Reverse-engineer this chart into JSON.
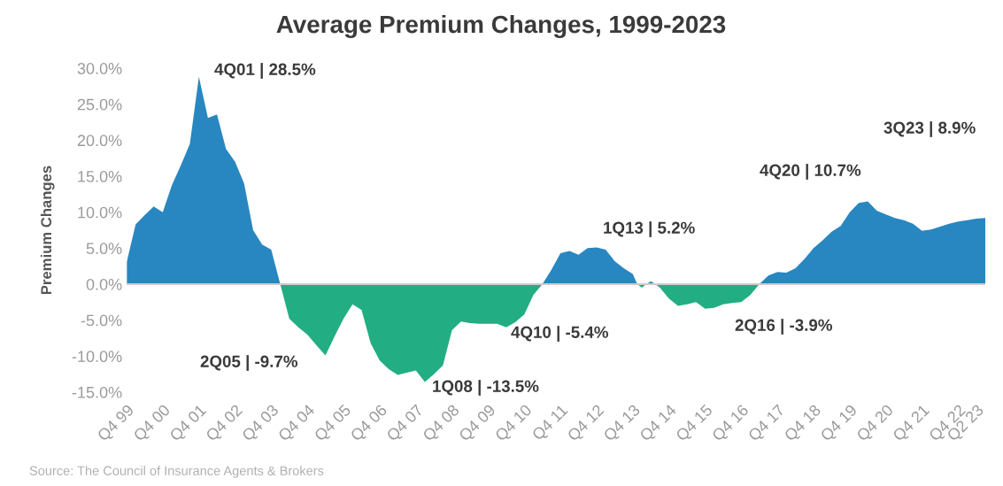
{
  "chart_data": {
    "type": "area",
    "title": "Average Premium Changes, 1999-2023",
    "ylabel": "Premium Changes",
    "categories": [
      "Q4 99",
      null,
      null,
      null,
      "Q4 00",
      null,
      null,
      null,
      "Q4 01",
      null,
      null,
      null,
      "Q4 02",
      null,
      null,
      null,
      "Q4 03",
      null,
      null,
      null,
      "Q4 04",
      null,
      null,
      null,
      "Q4 05",
      null,
      null,
      null,
      "Q4 06",
      null,
      null,
      null,
      "Q4 07",
      null,
      null,
      null,
      "Q4 08",
      null,
      null,
      null,
      "Q4 09",
      null,
      null,
      null,
      "Q4 10",
      null,
      null,
      null,
      "Q4 11",
      null,
      null,
      null,
      "Q4 12",
      null,
      null,
      null,
      "Q4 13",
      null,
      null,
      null,
      "Q4 14",
      null,
      null,
      null,
      "Q4 15",
      null,
      null,
      null,
      "Q4 16",
      null,
      null,
      null,
      "Q4 17",
      null,
      null,
      null,
      "Q4 18",
      null,
      null,
      null,
      "Q4 19",
      null,
      null,
      null,
      "Q4 20",
      null,
      null,
      null,
      "Q4 21",
      null,
      null,
      null,
      "Q4 22",
      null,
      "Q2 23",
      null
    ],
    "series": [
      {
        "color": "#2887c0",
        "values": [
          3.0,
          8.3,
          9.6,
          10.8,
          10.0,
          13.7,
          16.5,
          19.5,
          28.8,
          23.1,
          23.6,
          18.8,
          17.0,
          14.0,
          7.5,
          5.5,
          4.8,
          0.0,
          null,
          null,
          null,
          null,
          null,
          null,
          null,
          null,
          null,
          null,
          null,
          null,
          null,
          null,
          null,
          null,
          null,
          null,
          null,
          null,
          null,
          null,
          null,
          null,
          null,
          null,
          null,
          null,
          0.0,
          2.0,
          4.3,
          4.6,
          4.1,
          5.0,
          5.1,
          4.8,
          3.2,
          2.2,
          1.4,
          null,
          0.4,
          null,
          null,
          null,
          null,
          null,
          null,
          null,
          null,
          null,
          null,
          null,
          0.0,
          1.2,
          1.7,
          1.6,
          2.2,
          3.5,
          5.0,
          6.1,
          7.3,
          8.1,
          10.0,
          11.3,
          11.5,
          10.2,
          9.7,
          9.2,
          8.9,
          8.4,
          7.4,
          7.6,
          8.0,
          8.4,
          8.7,
          8.9,
          9.1,
          9.2
        ]
      },
      {
        "color": "#22ae82",
        "values": [
          null,
          null,
          null,
          null,
          null,
          null,
          null,
          null,
          null,
          null,
          null,
          null,
          null,
          null,
          null,
          null,
          null,
          0.0,
          -4.8,
          -6.0,
          -7.0,
          -8.5,
          -9.9,
          -7.3,
          -4.8,
          -2.8,
          -3.6,
          -8.2,
          -10.6,
          -11.8,
          -12.6,
          -12.3,
          -12.0,
          -13.6,
          -12.5,
          -11.3,
          -6.4,
          -5.2,
          -5.4,
          -5.5,
          -5.5,
          -5.5,
          -6.0,
          -5.3,
          -4.2,
          -1.5,
          0.0,
          null,
          null,
          null,
          null,
          null,
          null,
          null,
          null,
          null,
          null,
          -0.5,
          null,
          -0.5,
          -2.0,
          -3.0,
          -2.8,
          -2.5,
          -3.4,
          -3.3,
          -2.8,
          -2.6,
          -2.5,
          -1.5,
          0.0,
          null,
          null,
          null,
          null,
          null,
          null,
          null,
          null,
          null,
          null,
          null,
          null,
          null,
          null,
          null,
          null,
          null,
          null,
          null,
          null,
          null,
          null,
          null,
          null,
          null
        ]
      }
    ],
    "ylim": [
      -15,
      30
    ],
    "yticks": [
      {
        "value": -15,
        "label": "-15.0%"
      },
      {
        "value": -10,
        "label": "-10.0%"
      },
      {
        "value": -5,
        "label": "-5.0%"
      },
      {
        "value": 0,
        "label": "0.0%"
      },
      {
        "value": 5,
        "label": "5.0%"
      },
      {
        "value": 10,
        "label": "10.0%"
      },
      {
        "value": 15,
        "label": "15.0%"
      },
      {
        "value": 20,
        "label": "20.0%"
      },
      {
        "value": 25,
        "label": "25.0%"
      },
      {
        "value": 30,
        "label": "30.0%"
      }
    ],
    "ref_lines": [
      {
        "axis": "y",
        "value": 0,
        "color": "#cccccc"
      }
    ],
    "grid": false,
    "legend": false,
    "annotations": [
      "4Q01 | 28.5%",
      "2Q05 | -9.7%",
      "1Q08 | -13.5%",
      "4Q10 | -5.4%",
      "1Q13 | 5.2%",
      "2Q16 | -3.9%",
      "4Q20 | 10.7%",
      "3Q23 | 8.9%",
      "Source: The Council of Insurance Agents & Brokers"
    ]
  }
}
